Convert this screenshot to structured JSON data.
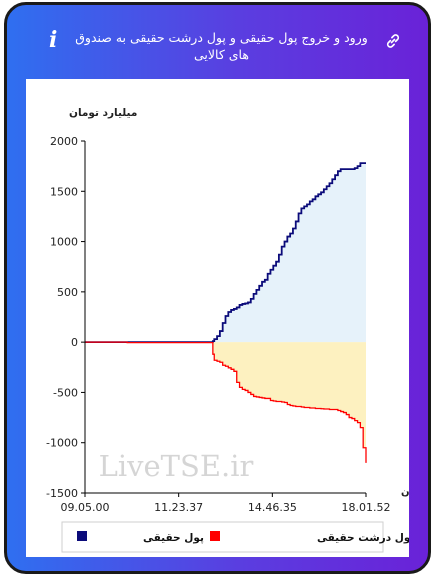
{
  "header": {
    "title": "ورود و خروج پول حقیقی و پول درشت حقیقی به صندوق های کالایی",
    "info_icon": "info-icon",
    "link_icon": "link-icon"
  },
  "watermark": "LiveTSE.ir",
  "chart_data": {
    "type": "area",
    "ylabel": "میلیارد تومان",
    "xlabel": "زمان",
    "ylim": [
      -1500,
      2000
    ],
    "yticks": [
      2000,
      1500,
      1000,
      500,
      0,
      -500,
      -1000,
      -1500
    ],
    "xticks": [
      "09.05.00",
      "11.23.37",
      "14.46.35",
      "18.01.52"
    ],
    "x_range": [
      0,
      1
    ],
    "legend_position": "bottom",
    "grid": false,
    "colors": {
      "real_money": "#0b0b7a",
      "real_money_fill": "#e6f2fa",
      "big_real_money": "#ff0000",
      "big_real_money_fill": "#fdf1c0"
    },
    "series": [
      {
        "name": "پول حقیقی",
        "color_key": "real_money",
        "points": [
          [
            0.0,
            0
          ],
          [
            0.15,
            0
          ],
          [
            0.3,
            0
          ],
          [
            0.45,
            0
          ],
          [
            0.455,
            10
          ],
          [
            0.46,
            30
          ],
          [
            0.47,
            60
          ],
          [
            0.48,
            110
          ],
          [
            0.49,
            190
          ],
          [
            0.5,
            260
          ],
          [
            0.51,
            300
          ],
          [
            0.52,
            320
          ],
          [
            0.53,
            330
          ],
          [
            0.54,
            345
          ],
          [
            0.55,
            370
          ],
          [
            0.56,
            380
          ],
          [
            0.57,
            385
          ],
          [
            0.58,
            395
          ],
          [
            0.59,
            430
          ],
          [
            0.6,
            480
          ],
          [
            0.61,
            520
          ],
          [
            0.62,
            560
          ],
          [
            0.63,
            600
          ],
          [
            0.64,
            620
          ],
          [
            0.65,
            680
          ],
          [
            0.66,
            720
          ],
          [
            0.67,
            760
          ],
          [
            0.68,
            800
          ],
          [
            0.69,
            870
          ],
          [
            0.7,
            950
          ],
          [
            0.71,
            1000
          ],
          [
            0.72,
            1050
          ],
          [
            0.73,
            1080
          ],
          [
            0.74,
            1130
          ],
          [
            0.75,
            1200
          ],
          [
            0.76,
            1280
          ],
          [
            0.77,
            1330
          ],
          [
            0.78,
            1350
          ],
          [
            0.79,
            1370
          ],
          [
            0.8,
            1400
          ],
          [
            0.81,
            1420
          ],
          [
            0.82,
            1450
          ],
          [
            0.83,
            1470
          ],
          [
            0.84,
            1490
          ],
          [
            0.85,
            1520
          ],
          [
            0.86,
            1550
          ],
          [
            0.87,
            1580
          ],
          [
            0.88,
            1620
          ],
          [
            0.89,
            1660
          ],
          [
            0.9,
            1700
          ],
          [
            0.91,
            1720
          ],
          [
            0.92,
            1720
          ],
          [
            0.93,
            1720
          ],
          [
            0.94,
            1720
          ],
          [
            0.95,
            1720
          ],
          [
            0.96,
            1730
          ],
          [
            0.97,
            1750
          ],
          [
            0.98,
            1780
          ],
          [
            0.99,
            1780
          ],
          [
            1.0,
            1780
          ]
        ]
      },
      {
        "name": "پول درشت حقیقی",
        "color_key": "big_real_money",
        "points": [
          [
            0.0,
            0
          ],
          [
            0.15,
            -5
          ],
          [
            0.3,
            -5
          ],
          [
            0.45,
            -5
          ],
          [
            0.455,
            -120
          ],
          [
            0.46,
            -180
          ],
          [
            0.47,
            -190
          ],
          [
            0.48,
            -200
          ],
          [
            0.49,
            -230
          ],
          [
            0.5,
            -240
          ],
          [
            0.51,
            -255
          ],
          [
            0.52,
            -270
          ],
          [
            0.53,
            -290
          ],
          [
            0.54,
            -400
          ],
          [
            0.55,
            -450
          ],
          [
            0.56,
            -470
          ],
          [
            0.57,
            -480
          ],
          [
            0.58,
            -500
          ],
          [
            0.59,
            -520
          ],
          [
            0.6,
            -540
          ],
          [
            0.61,
            -545
          ],
          [
            0.62,
            -550
          ],
          [
            0.63,
            -555
          ],
          [
            0.64,
            -560
          ],
          [
            0.65,
            -560
          ],
          [
            0.66,
            -580
          ],
          [
            0.67,
            -585
          ],
          [
            0.68,
            -590
          ],
          [
            0.69,
            -590
          ],
          [
            0.7,
            -595
          ],
          [
            0.71,
            -600
          ],
          [
            0.72,
            -620
          ],
          [
            0.73,
            -630
          ],
          [
            0.74,
            -635
          ],
          [
            0.75,
            -640
          ],
          [
            0.76,
            -640
          ],
          [
            0.77,
            -645
          ],
          [
            0.78,
            -650
          ],
          [
            0.79,
            -650
          ],
          [
            0.8,
            -655
          ],
          [
            0.81,
            -655
          ],
          [
            0.82,
            -660
          ],
          [
            0.83,
            -660
          ],
          [
            0.84,
            -662
          ],
          [
            0.85,
            -665
          ],
          [
            0.86,
            -665
          ],
          [
            0.87,
            -670
          ],
          [
            0.88,
            -670
          ],
          [
            0.89,
            -670
          ],
          [
            0.9,
            -680
          ],
          [
            0.91,
            -690
          ],
          [
            0.92,
            -700
          ],
          [
            0.93,
            -720
          ],
          [
            0.94,
            -750
          ],
          [
            0.95,
            -760
          ],
          [
            0.96,
            -780
          ],
          [
            0.97,
            -800
          ],
          [
            0.98,
            -850
          ],
          [
            0.99,
            -1050
          ],
          [
            1.0,
            -1200
          ]
        ]
      }
    ]
  }
}
